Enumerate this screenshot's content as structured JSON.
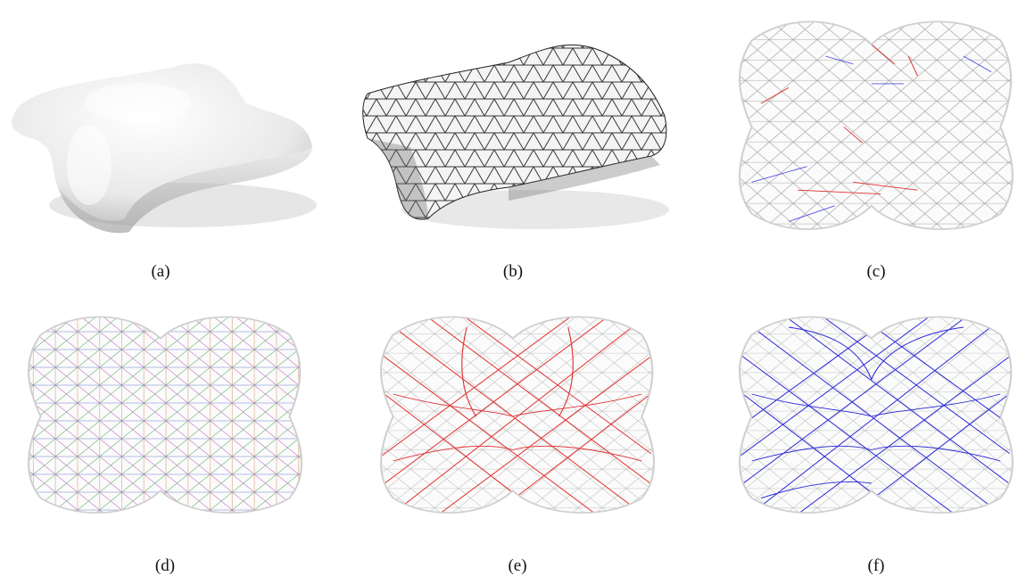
{
  "captions": {
    "a": "(a)",
    "b": "(b)",
    "c": "(c)",
    "d": "(d)",
    "e": "(e)",
    "f": "(f)"
  },
  "colors": {
    "background": "#ffffff",
    "surface": "#f2f2f2",
    "mesh_edge": "#1a1a1a",
    "red_curves": "#e03030",
    "blue_curves": "#2a2ad8",
    "gray_curves": "#9a9a9a"
  }
}
